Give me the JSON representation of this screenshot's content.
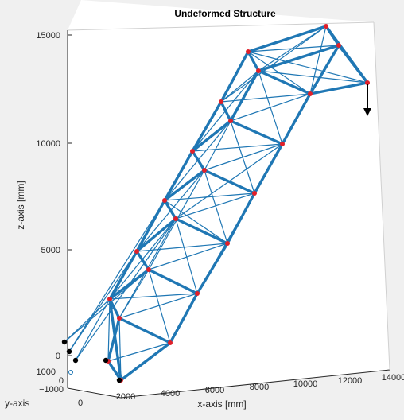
{
  "chart_data": {
    "type": "3d-line",
    "title": "Undeformed Structure",
    "xlabel": "x-axis [mm]",
    "ylabel": "y-axis",
    "zlabel": "z-axis [mm]",
    "x_ticks": [
      "0",
      "2000",
      "4000",
      "6000",
      "8000",
      "10000",
      "12000",
      "14000"
    ],
    "y_ticks": [
      "1000",
      "0",
      "−1000"
    ],
    "z_ticks": [
      "0",
      "5000",
      "10000",
      "15000"
    ],
    "xlim": [
      0,
      14000
    ],
    "zlim": [
      0,
      15000
    ],
    "member_color": "#1f77b4",
    "node_color": "#e0202a",
    "support_color": "#000000",
    "load_arrow_color": "#000000",
    "grid": false,
    "box": true
  }
}
